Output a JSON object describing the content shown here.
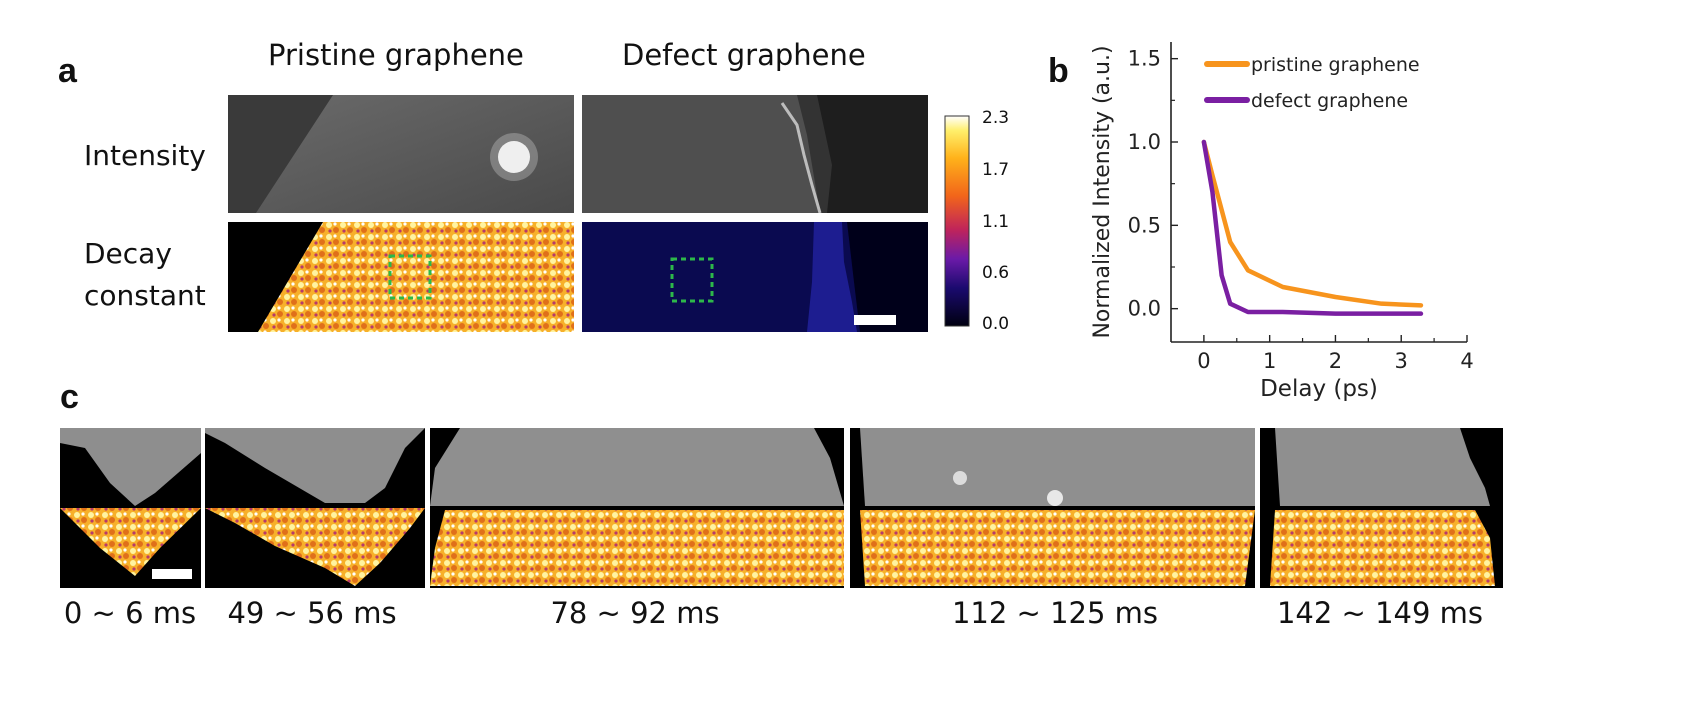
{
  "panel_a": {
    "letter": "a",
    "col_titles": [
      "Pristine graphene",
      "Defect graphene"
    ],
    "row_labels": {
      "intensity": "Intensity",
      "decay_line1": "Decay",
      "decay_line2": "constant"
    },
    "colorbar": {
      "ticks": [
        "2.3",
        "1.7",
        "1.1",
        "0.6",
        "0.0"
      ],
      "accent_roi": "#2db84a"
    }
  },
  "panel_b": {
    "letter": "b"
  },
  "panel_c": {
    "letter": "c",
    "time_labels": [
      "0 ~ 6 ms",
      "49 ~ 56 ms",
      "78 ~ 92 ms",
      "112 ~ 125 ms",
      "142 ~ 149 ms"
    ]
  },
  "colors": {
    "pristine": "#f7941d",
    "defect": "#7a1fa2"
  },
  "chart_data": {
    "type": "line",
    "xlabel": "Delay (ps)",
    "ylabel": "Normalized Intensity (a.u.)",
    "xlim": [
      -0.5,
      4
    ],
    "ylim": [
      -0.2,
      1.6
    ],
    "xticks": [
      "0",
      "1",
      "2",
      "3",
      "4"
    ],
    "yticks": [
      "0.0",
      "0.5",
      "1.0",
      "1.5"
    ],
    "legend_position": "top-left",
    "grid": false,
    "series": [
      {
        "name": "pristine graphene",
        "color": "#f7941d",
        "x": [
          0,
          0.13,
          0.4,
          0.67,
          1.2,
          2.0,
          2.7,
          3.3
        ],
        "y": [
          1.0,
          0.8,
          0.4,
          0.23,
          0.13,
          0.07,
          0.03,
          0.02
        ]
      },
      {
        "name": "defect graphene",
        "color": "#7a1fa2",
        "x": [
          0,
          0.13,
          0.27,
          0.4,
          0.67,
          1.2,
          2.0,
          3.3
        ],
        "y": [
          1.0,
          0.7,
          0.2,
          0.03,
          -0.02,
          -0.02,
          -0.03,
          -0.03
        ]
      }
    ]
  }
}
